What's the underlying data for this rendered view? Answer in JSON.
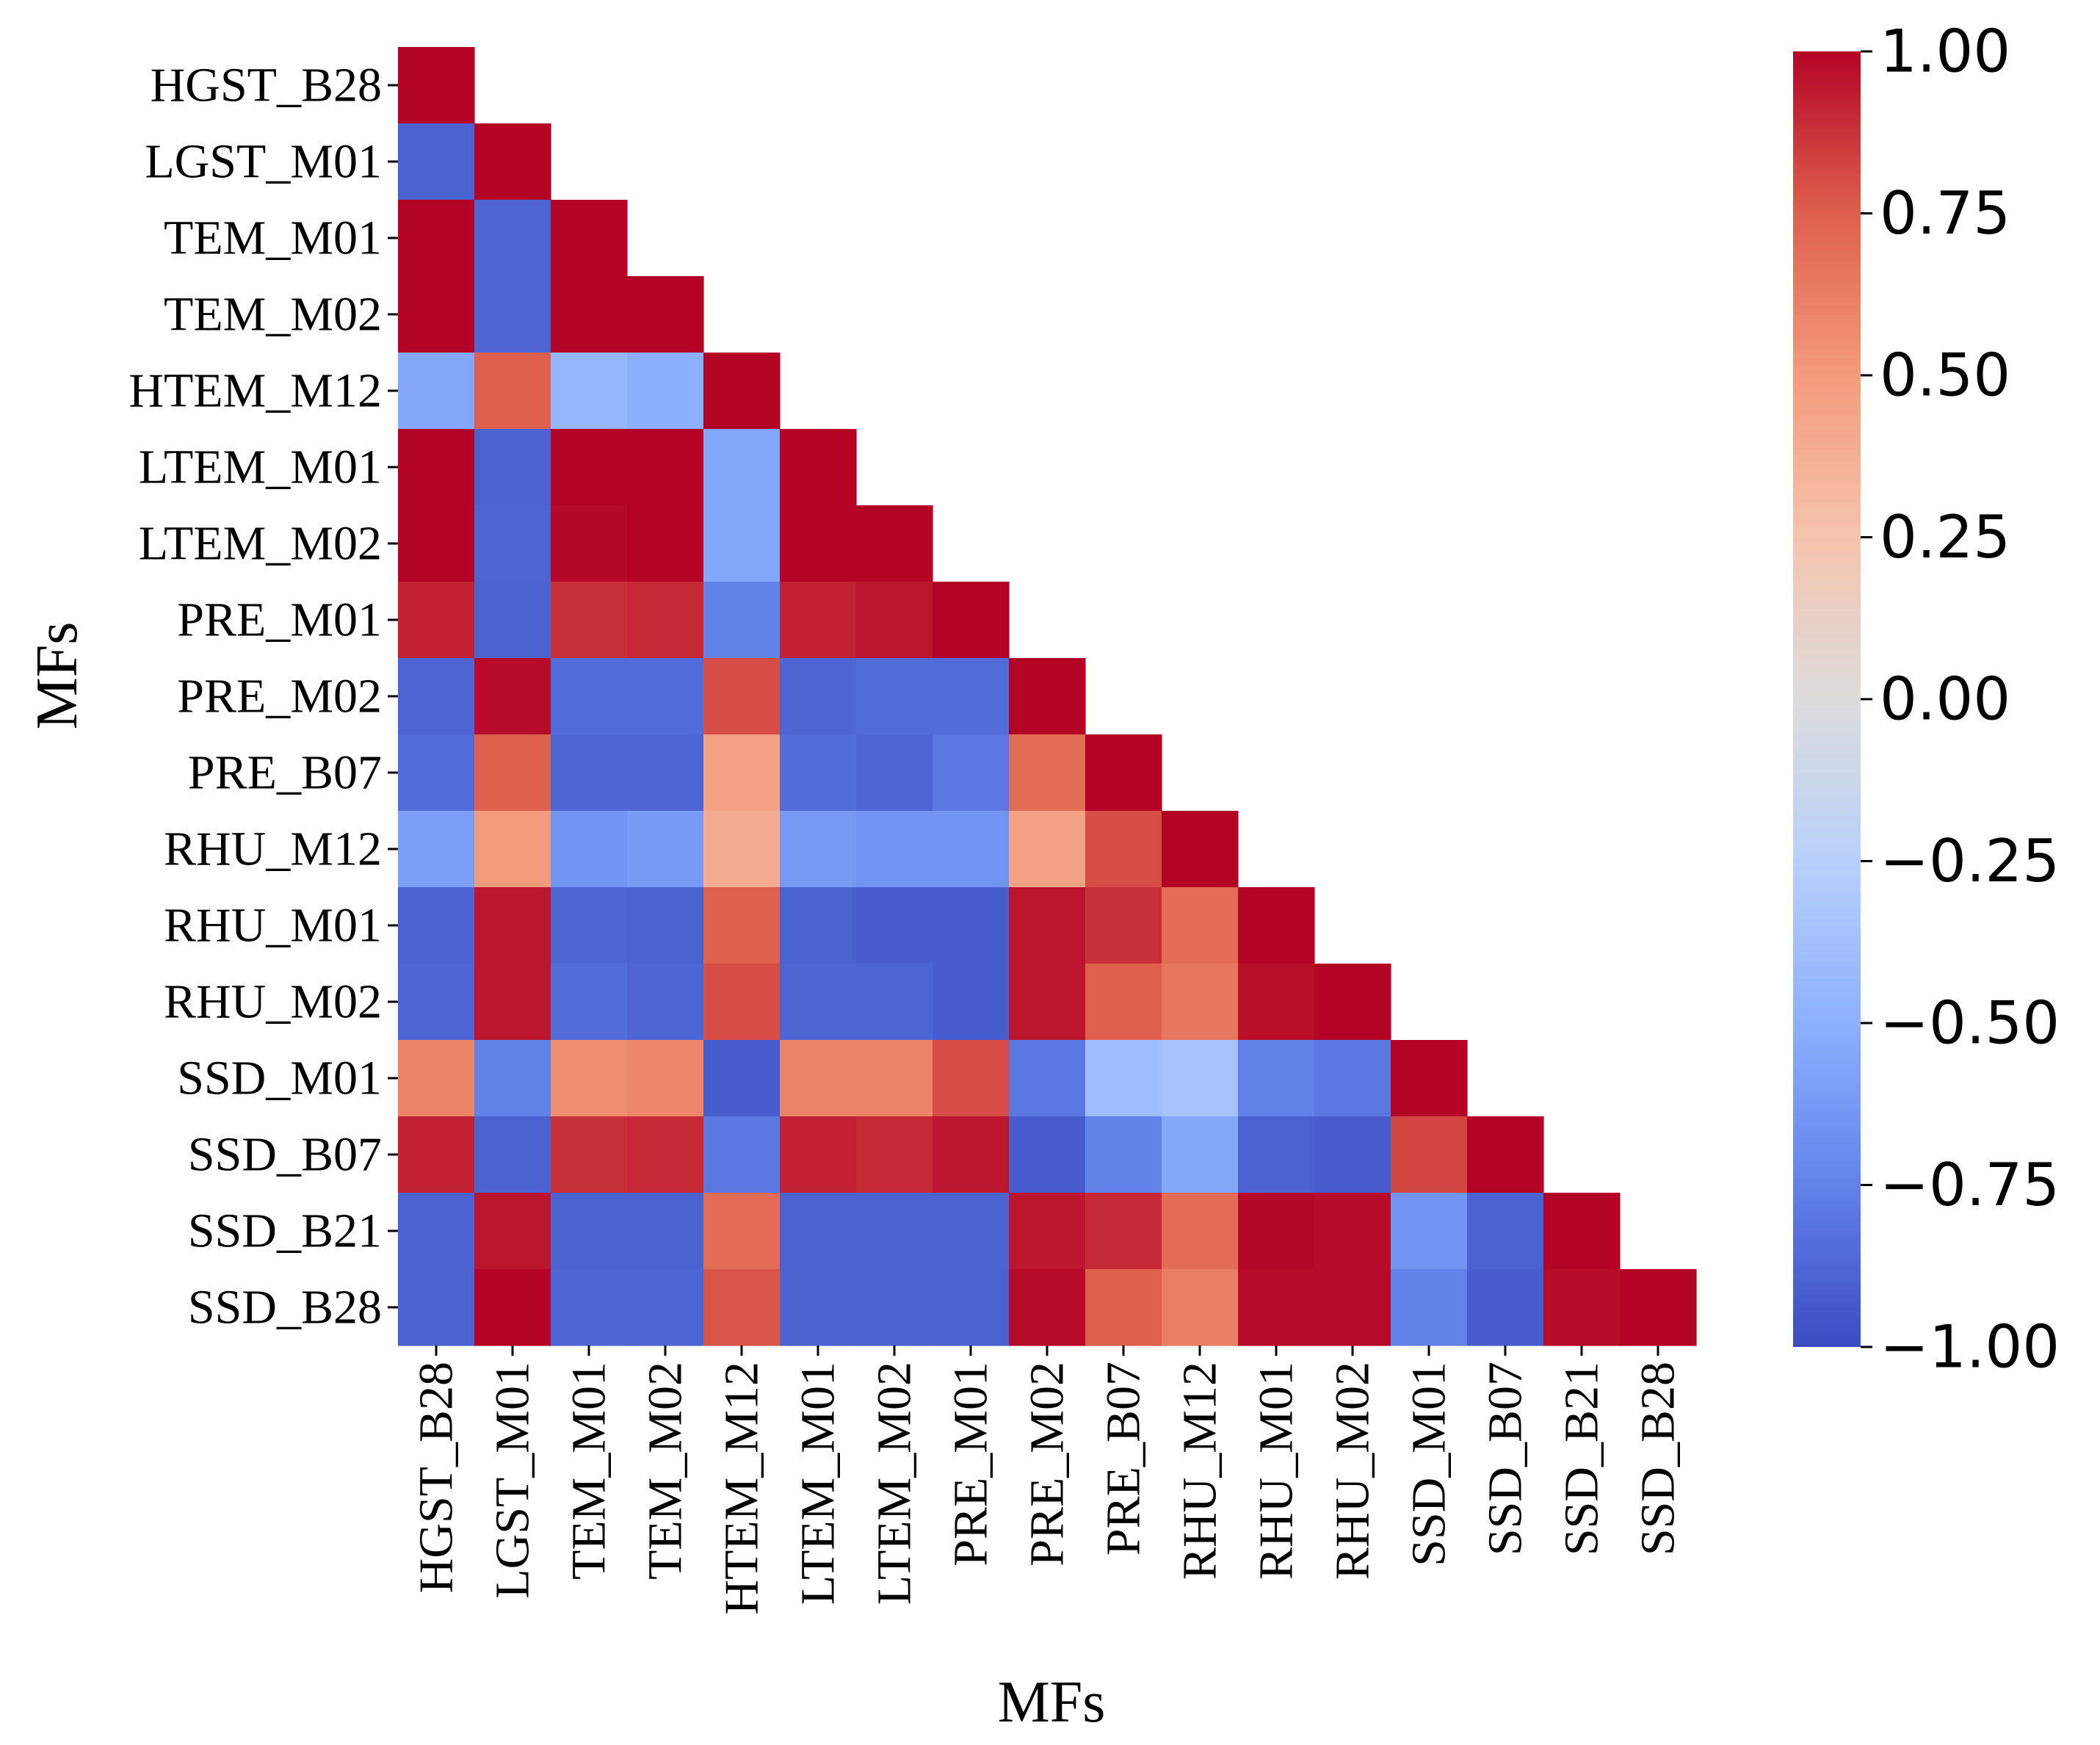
{
  "chart_data": {
    "type": "heatmap",
    "xlabel": "MFs",
    "ylabel": "MFs",
    "mask": "upper-triangle",
    "labels": [
      "HGST_B28",
      "LGST_M01",
      "TEM_M01",
      "TEM_M02",
      "HTEM_M12",
      "LTEM_M01",
      "LTEM_M02",
      "PRE_M01",
      "PRE_M02",
      "PRE_B07",
      "RHU_M12",
      "RHU_M01",
      "RHU_M02",
      "SSD_M01",
      "SSD_B07",
      "SSD_B21",
      "SSD_B28"
    ],
    "matrix": [
      [
        1.0
      ],
      [
        -0.9,
        1.0
      ],
      [
        1.0,
        -0.88,
        1.0
      ],
      [
        1.0,
        -0.88,
        1.0,
        1.0
      ],
      [
        -0.55,
        0.75,
        -0.45,
        -0.5,
        1.0
      ],
      [
        1.0,
        -0.9,
        1.0,
        1.0,
        -0.55,
        1.0
      ],
      [
        1.0,
        -0.88,
        0.99,
        1.0,
        -0.55,
        1.0,
        1.0
      ],
      [
        0.92,
        -0.9,
        0.88,
        0.9,
        -0.75,
        0.92,
        0.95,
        1.0
      ],
      [
        -0.88,
        0.98,
        -0.85,
        -0.85,
        0.8,
        -0.88,
        -0.85,
        -0.85,
        1.0
      ],
      [
        -0.85,
        0.75,
        -0.88,
        -0.88,
        0.45,
        -0.85,
        -0.88,
        -0.8,
        0.7,
        1.0
      ],
      [
        -0.6,
        0.5,
        -0.65,
        -0.62,
        0.4,
        -0.62,
        -0.65,
        -0.65,
        0.45,
        0.8,
        1.0
      ],
      [
        -0.9,
        0.95,
        -0.88,
        -0.9,
        0.75,
        -0.9,
        -0.92,
        -0.92,
        0.95,
        0.88,
        0.7,
        1.0
      ],
      [
        -0.88,
        0.95,
        -0.85,
        -0.88,
        0.8,
        -0.88,
        -0.88,
        -0.92,
        0.95,
        0.75,
        0.65,
        0.97,
        1.0
      ],
      [
        0.6,
        -0.75,
        0.55,
        0.58,
        -0.92,
        0.6,
        0.6,
        0.8,
        -0.8,
        -0.4,
        -0.35,
        -0.75,
        -0.8,
        1.0
      ],
      [
        0.92,
        -0.9,
        0.88,
        0.9,
        -0.8,
        0.92,
        0.9,
        0.95,
        -0.92,
        -0.75,
        -0.55,
        -0.9,
        -0.92,
        0.82,
        1.0
      ],
      [
        -0.9,
        0.95,
        -0.9,
        -0.9,
        0.7,
        -0.9,
        -0.9,
        -0.9,
        0.95,
        0.9,
        0.7,
        0.99,
        0.98,
        -0.65,
        -0.9,
        1.0
      ],
      [
        -0.9,
        1.0,
        -0.88,
        -0.88,
        0.78,
        -0.9,
        -0.9,
        -0.9,
        0.98,
        0.75,
        0.62,
        0.98,
        0.98,
        -0.75,
        -0.92,
        0.98,
        1.0
      ]
    ],
    "colorbar": {
      "colormap": "coolwarm",
      "range": [
        -1.0,
        1.0
      ],
      "ticks": [
        "1.00",
        "0.75",
        "0.50",
        "0.25",
        "0.00",
        "−0.25",
        "−0.50",
        "−0.75",
        "−1.00"
      ],
      "tick_values": [
        1.0,
        0.75,
        0.5,
        0.25,
        0.0,
        -0.25,
        -0.5,
        -0.75,
        -1.0
      ]
    }
  }
}
